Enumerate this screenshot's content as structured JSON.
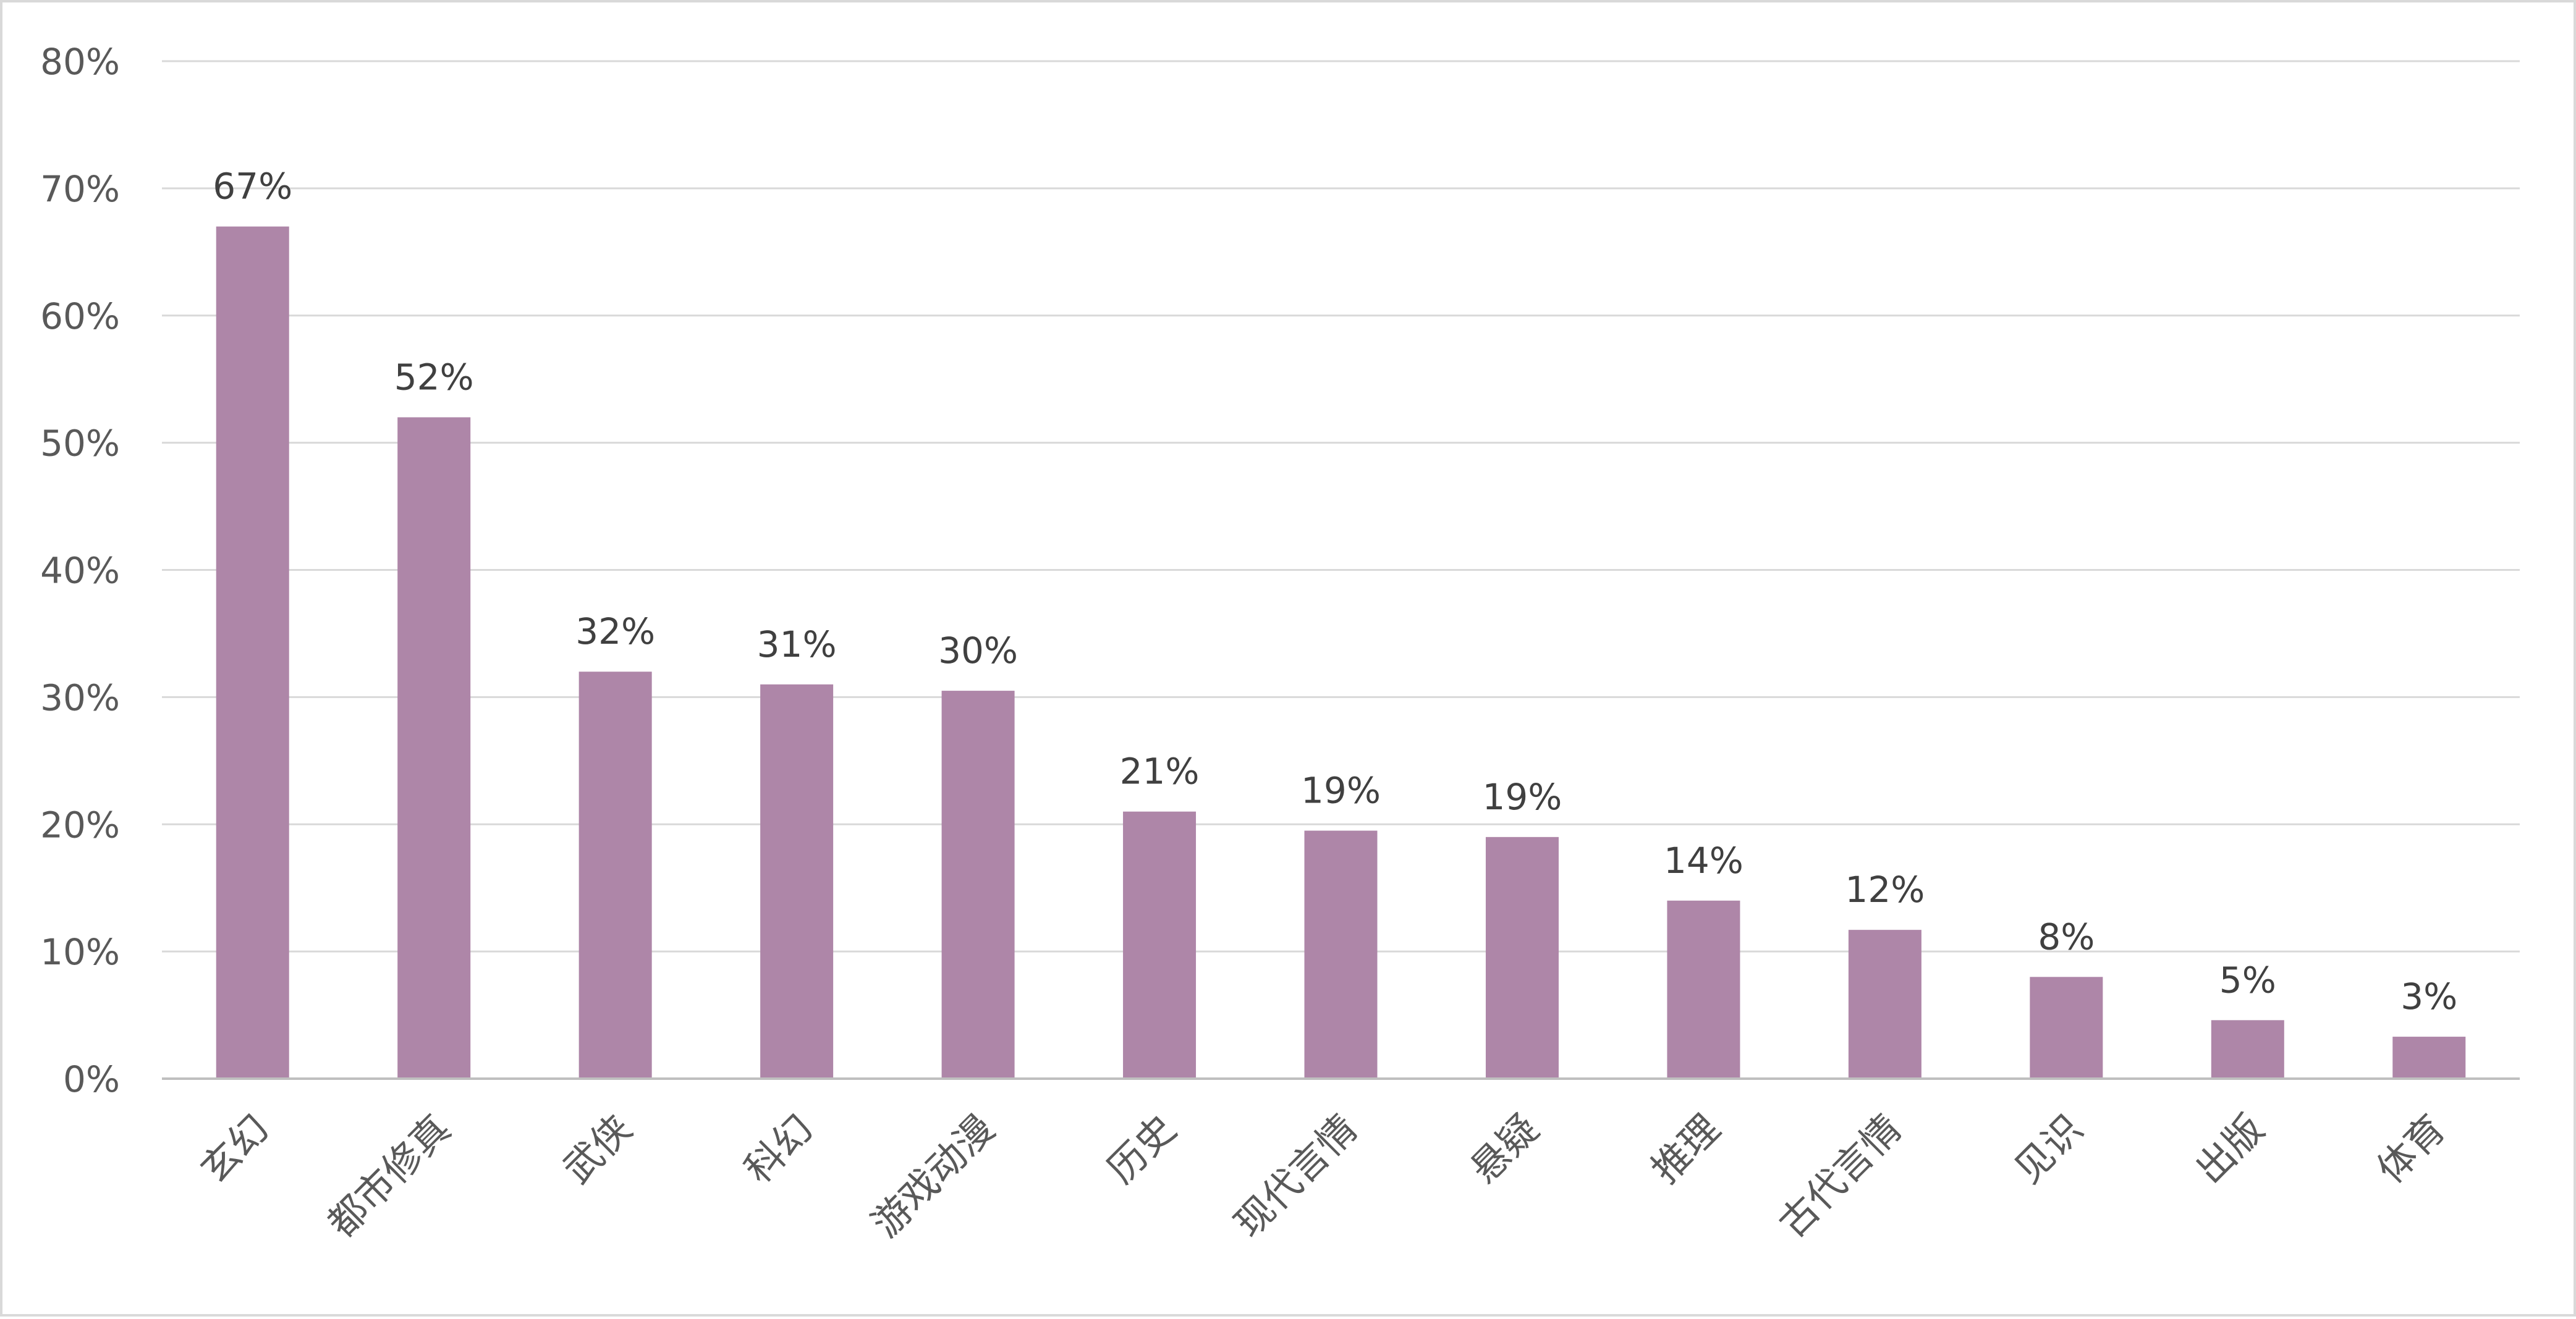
{
  "colors": {
    "bar": "#ae86a8",
    "gridline": "#d9d9d9",
    "axis": "#bfbfbf",
    "label_text": "#595959"
  },
  "chart_data": {
    "type": "bar",
    "title": "",
    "xlabel": "",
    "ylabel": "",
    "categories": [
      "玄幻",
      "都市修真",
      "武侠",
      "科幻",
      "游戏动漫",
      "历史",
      "现代言情",
      "悬疑",
      "推理",
      "古代言情",
      "见识",
      "出版",
      "体育"
    ],
    "values": [
      67,
      52,
      32,
      31,
      30.5,
      21,
      19.5,
      19,
      14,
      11.7,
      8,
      4.6,
      3.3
    ],
    "data_labels": [
      "67%",
      "52%",
      "32%",
      "31%",
      "30%",
      "21%",
      "19%",
      "19%",
      "14%",
      "12%",
      "8%",
      "5%",
      "3%"
    ],
    "ylim": [
      0,
      80
    ],
    "yticks": [
      0,
      10,
      20,
      30,
      40,
      50,
      60,
      70,
      80
    ],
    "ytick_labels": [
      "0%",
      "10%",
      "20%",
      "30%",
      "40%",
      "50%",
      "60%",
      "70%",
      "80%"
    ],
    "grid": true,
    "legend": "none"
  }
}
